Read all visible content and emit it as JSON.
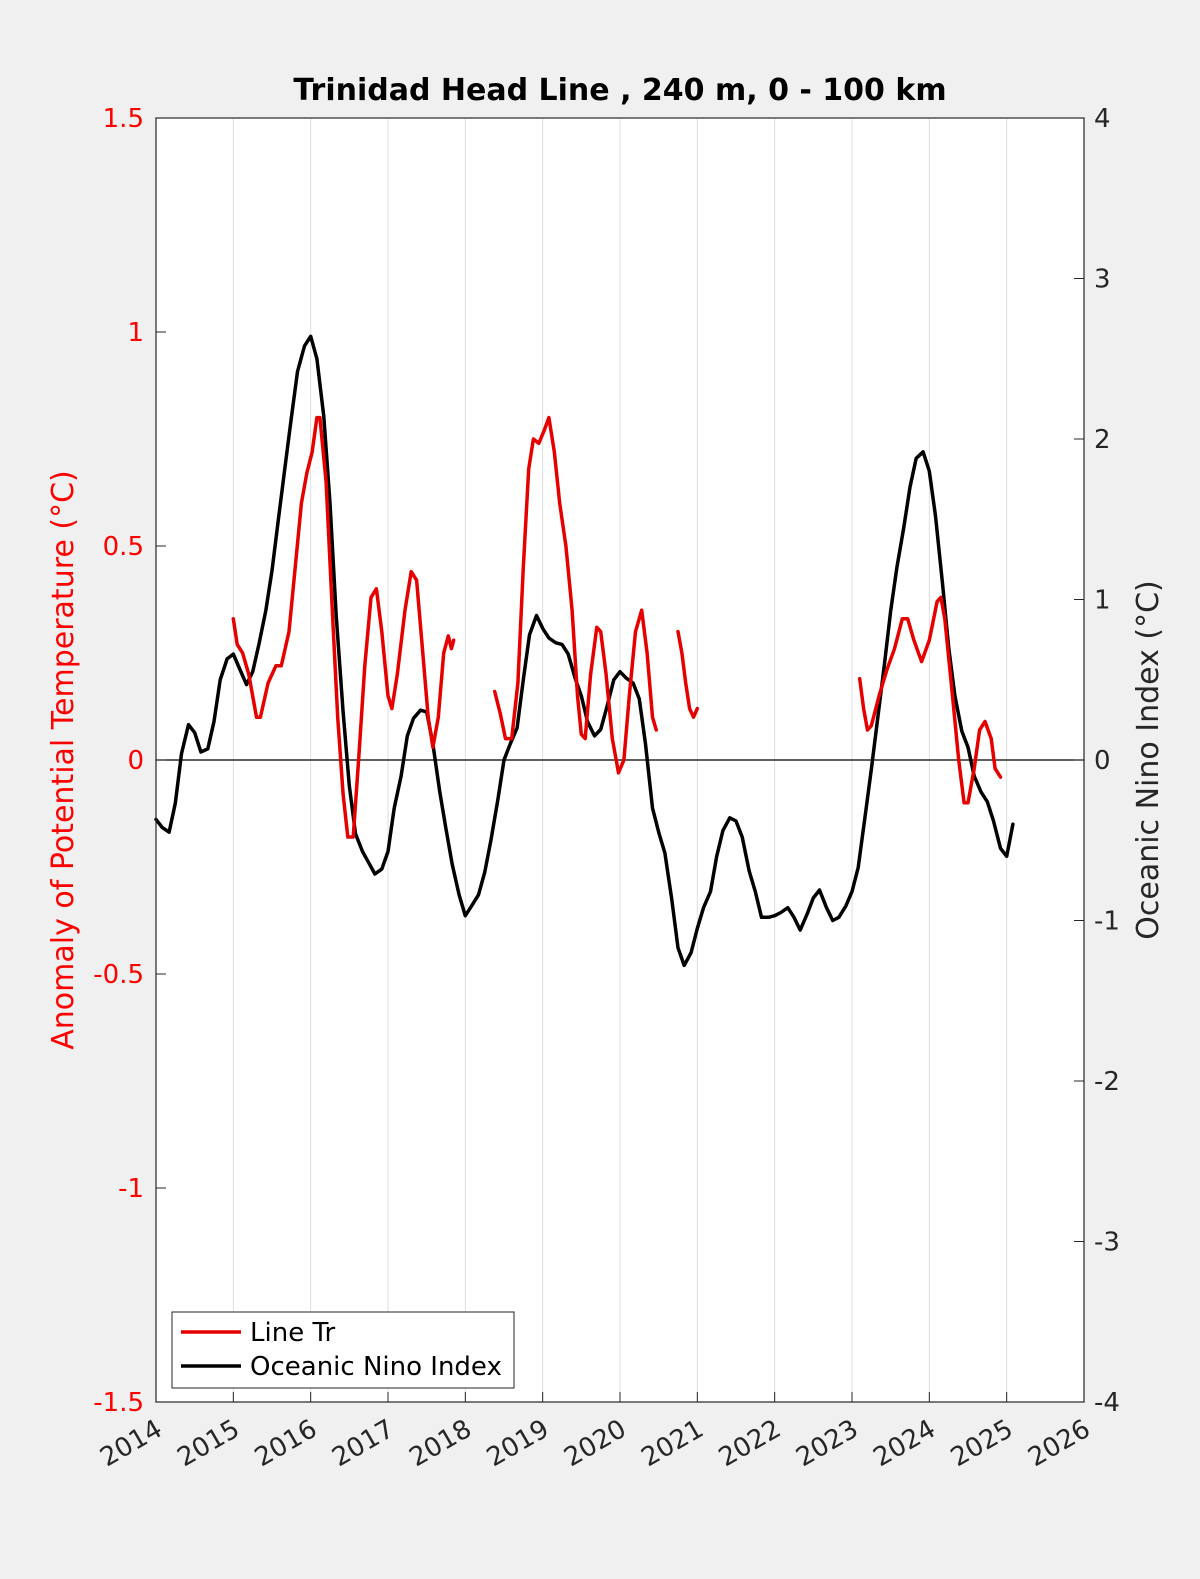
{
  "chart_data": {
    "type": "line",
    "title": "Trinidad Head Line , 240 m, 0 - 100 km",
    "ylabel_left": "Anomaly of Potential Temperature (°C)",
    "ylabel_right": "Oceanic Nino Index (°C)",
    "xlim": [
      2014,
      2026
    ],
    "ylim_left": [
      -1.5,
      1.5
    ],
    "ylim_right": [
      -4,
      4
    ],
    "x_ticks": [
      "2014",
      "2015",
      "2016",
      "2017",
      "2018",
      "2019",
      "2020",
      "2021",
      "2022",
      "2023",
      "2024",
      "2025",
      "2026"
    ],
    "y_ticks_left": [
      "1.5",
      "1",
      "0.5",
      "0",
      "-0.5",
      "-1",
      "-1.5"
    ],
    "y_ticks_right": [
      "4",
      "3",
      "2",
      "1",
      "0",
      "-1",
      "-2",
      "-3",
      "-4"
    ],
    "grid": "vertical",
    "legend_position": "bottom-left",
    "zero_line": true,
    "colors": {
      "line_tr": "#e60000",
      "oni": "#000000",
      "axis_left": "#ff0000",
      "axis_right": "#262626"
    },
    "series": [
      {
        "name": "Line Tr",
        "axis": "left",
        "color": "#e60000",
        "segments": [
          [
            [
              2015.0,
              0.33
            ],
            [
              2015.05,
              0.27
            ],
            [
              2015.12,
              0.25
            ],
            [
              2015.2,
              0.2
            ],
            [
              2015.3,
              0.1
            ],
            [
              2015.35,
              0.1
            ],
            [
              2015.45,
              0.18
            ],
            [
              2015.55,
              0.22
            ],
            [
              2015.62,
              0.22
            ],
            [
              2015.72,
              0.3
            ],
            [
              2015.8,
              0.45
            ],
            [
              2015.88,
              0.6
            ],
            [
              2015.95,
              0.67
            ],
            [
              2016.02,
              0.72
            ],
            [
              2016.08,
              0.8
            ],
            [
              2016.12,
              0.8
            ],
            [
              2016.2,
              0.65
            ],
            [
              2016.28,
              0.35
            ],
            [
              2016.35,
              0.1
            ],
            [
              2016.42,
              -0.08
            ],
            [
              2016.48,
              -0.18
            ],
            [
              2016.55,
              -0.18
            ],
            [
              2016.62,
              0.0
            ],
            [
              2016.7,
              0.22
            ],
            [
              2016.78,
              0.38
            ],
            [
              2016.85,
              0.4
            ],
            [
              2016.92,
              0.3
            ],
            [
              2017.0,
              0.15
            ],
            [
              2017.05,
              0.12
            ],
            [
              2017.12,
              0.2
            ],
            [
              2017.22,
              0.35
            ],
            [
              2017.3,
              0.44
            ],
            [
              2017.37,
              0.42
            ],
            [
              2017.45,
              0.25
            ],
            [
              2017.52,
              0.1
            ],
            [
              2017.58,
              0.03
            ],
            [
              2017.65,
              0.1
            ],
            [
              2017.72,
              0.25
            ],
            [
              2017.78,
              0.29
            ],
            [
              2017.82,
              0.26
            ],
            [
              2017.85,
              0.28
            ]
          ],
          [
            [
              2018.38,
              0.16
            ],
            [
              2018.45,
              0.11
            ],
            [
              2018.52,
              0.05
            ],
            [
              2018.6,
              0.05
            ],
            [
              2018.68,
              0.18
            ],
            [
              2018.75,
              0.45
            ],
            [
              2018.82,
              0.68
            ],
            [
              2018.88,
              0.75
            ],
            [
              2018.95,
              0.74
            ],
            [
              2019.02,
              0.77
            ],
            [
              2019.08,
              0.8
            ],
            [
              2019.15,
              0.72
            ],
            [
              2019.22,
              0.6
            ],
            [
              2019.3,
              0.5
            ],
            [
              2019.38,
              0.35
            ],
            [
              2019.45,
              0.15
            ],
            [
              2019.5,
              0.06
            ],
            [
              2019.55,
              0.05
            ],
            [
              2019.62,
              0.2
            ],
            [
              2019.7,
              0.31
            ],
            [
              2019.75,
              0.3
            ],
            [
              2019.82,
              0.2
            ],
            [
              2019.9,
              0.05
            ],
            [
              2019.98,
              -0.03
            ],
            [
              2020.05,
              0.0
            ],
            [
              2020.12,
              0.15
            ],
            [
              2020.2,
              0.3
            ],
            [
              2020.28,
              0.35
            ],
            [
              2020.35,
              0.25
            ],
            [
              2020.42,
              0.1
            ],
            [
              2020.47,
              0.07
            ]
          ],
          [
            [
              2020.75,
              0.3
            ],
            [
              2020.8,
              0.25
            ],
            [
              2020.85,
              0.18
            ],
            [
              2020.9,
              0.12
            ],
            [
              2020.95,
              0.1
            ],
            [
              2021.0,
              0.12
            ]
          ],
          [
            [
              2023.1,
              0.19
            ],
            [
              2023.15,
              0.12
            ],
            [
              2023.2,
              0.07
            ],
            [
              2023.25,
              0.08
            ],
            [
              2023.35,
              0.15
            ],
            [
              2023.45,
              0.21
            ],
            [
              2023.55,
              0.26
            ],
            [
              2023.65,
              0.33
            ],
            [
              2023.72,
              0.33
            ],
            [
              2023.8,
              0.28
            ],
            [
              2023.9,
              0.23
            ],
            [
              2024.0,
              0.28
            ],
            [
              2024.1,
              0.37
            ],
            [
              2024.15,
              0.38
            ],
            [
              2024.2,
              0.33
            ],
            [
              2024.3,
              0.15
            ],
            [
              2024.38,
              0.0
            ],
            [
              2024.45,
              -0.1
            ],
            [
              2024.5,
              -0.1
            ],
            [
              2024.58,
              -0.02
            ],
            [
              2024.65,
              0.07
            ],
            [
              2024.72,
              0.09
            ],
            [
              2024.8,
              0.05
            ],
            [
              2024.85,
              -0.02
            ],
            [
              2024.92,
              -0.04
            ]
          ]
        ]
      },
      {
        "name": "Oceanic Nino Index",
        "axis": "right",
        "color": "#000000",
        "segments": [
          [
            [
              2014.0,
              -0.37
            ],
            [
              2014.08,
              -0.42
            ],
            [
              2014.17,
              -0.45
            ],
            [
              2014.25,
              -0.27
            ],
            [
              2014.33,
              0.04
            ],
            [
              2014.42,
              0.22
            ],
            [
              2014.5,
              0.17
            ],
            [
              2014.58,
              0.05
            ],
            [
              2014.67,
              0.07
            ],
            [
              2014.75,
              0.24
            ],
            [
              2014.83,
              0.5
            ],
            [
              2014.92,
              0.63
            ],
            [
              2015.0,
              0.66
            ],
            [
              2015.08,
              0.57
            ],
            [
              2015.17,
              0.47
            ],
            [
              2015.25,
              0.55
            ],
            [
              2015.33,
              0.72
            ],
            [
              2015.42,
              0.93
            ],
            [
              2015.5,
              1.18
            ],
            [
              2015.58,
              1.49
            ],
            [
              2015.67,
              1.83
            ],
            [
              2015.75,
              2.13
            ],
            [
              2015.83,
              2.42
            ],
            [
              2015.92,
              2.58
            ],
            [
              2016.0,
              2.64
            ],
            [
              2016.08,
              2.5
            ],
            [
              2016.17,
              2.14
            ],
            [
              2016.25,
              1.6
            ],
            [
              2016.33,
              0.9
            ],
            [
              2016.42,
              0.3
            ],
            [
              2016.5,
              -0.16
            ],
            [
              2016.58,
              -0.46
            ],
            [
              2016.67,
              -0.57
            ],
            [
              2016.75,
              -0.64
            ],
            [
              2016.83,
              -0.71
            ],
            [
              2016.92,
              -0.68
            ],
            [
              2017.0,
              -0.57
            ],
            [
              2017.08,
              -0.3
            ],
            [
              2017.17,
              -0.1
            ],
            [
              2017.25,
              0.15
            ],
            [
              2017.33,
              0.26
            ],
            [
              2017.42,
              0.31
            ],
            [
              2017.5,
              0.3
            ],
            [
              2017.58,
              0.1
            ],
            [
              2017.67,
              -0.2
            ],
            [
              2017.75,
              -0.43
            ],
            [
              2017.83,
              -0.65
            ],
            [
              2017.92,
              -0.84
            ],
            [
              2018.0,
              -0.97
            ],
            [
              2018.08,
              -0.91
            ],
            [
              2018.17,
              -0.84
            ],
            [
              2018.25,
              -0.7
            ],
            [
              2018.33,
              -0.5
            ],
            [
              2018.42,
              -0.25
            ],
            [
              2018.5,
              0.0
            ],
            [
              2018.58,
              0.1
            ],
            [
              2018.67,
              0.2
            ],
            [
              2018.75,
              0.5
            ],
            [
              2018.83,
              0.78
            ],
            [
              2018.92,
              0.9
            ],
            [
              2019.0,
              0.82
            ],
            [
              2019.08,
              0.76
            ],
            [
              2019.17,
              0.73
            ],
            [
              2019.25,
              0.72
            ],
            [
              2019.33,
              0.66
            ],
            [
              2019.42,
              0.51
            ],
            [
              2019.5,
              0.4
            ],
            [
              2019.58,
              0.24
            ],
            [
              2019.67,
              0.15
            ],
            [
              2019.75,
              0.19
            ],
            [
              2019.83,
              0.33
            ],
            [
              2019.92,
              0.5
            ],
            [
              2020.0,
              0.55
            ],
            [
              2020.08,
              0.51
            ],
            [
              2020.17,
              0.48
            ],
            [
              2020.25,
              0.38
            ],
            [
              2020.33,
              0.1
            ],
            [
              2020.42,
              -0.3
            ],
            [
              2020.5,
              -0.45
            ],
            [
              2020.58,
              -0.58
            ],
            [
              2020.67,
              -0.87
            ],
            [
              2020.75,
              -1.17
            ],
            [
              2020.83,
              -1.28
            ],
            [
              2020.92,
              -1.2
            ],
            [
              2021.0,
              -1.05
            ],
            [
              2021.08,
              -0.92
            ],
            [
              2021.17,
              -0.82
            ],
            [
              2021.25,
              -0.6
            ],
            [
              2021.33,
              -0.44
            ],
            [
              2021.42,
              -0.36
            ],
            [
              2021.5,
              -0.38
            ],
            [
              2021.58,
              -0.48
            ],
            [
              2021.67,
              -0.69
            ],
            [
              2021.75,
              -0.82
            ],
            [
              2021.83,
              -0.98
            ],
            [
              2021.92,
              -0.98
            ],
            [
              2022.0,
              -0.97
            ],
            [
              2022.08,
              -0.95
            ],
            [
              2022.17,
              -0.92
            ],
            [
              2022.25,
              -0.98
            ],
            [
              2022.33,
              -1.06
            ],
            [
              2022.42,
              -0.96
            ],
            [
              2022.5,
              -0.86
            ],
            [
              2022.58,
              -0.81
            ],
            [
              2022.67,
              -0.92
            ],
            [
              2022.75,
              -1.0
            ],
            [
              2022.83,
              -0.98
            ],
            [
              2022.92,
              -0.91
            ],
            [
              2023.0,
              -0.82
            ],
            [
              2023.08,
              -0.67
            ],
            [
              2023.17,
              -0.35
            ],
            [
              2023.25,
              -0.06
            ],
            [
              2023.33,
              0.25
            ],
            [
              2023.42,
              0.6
            ],
            [
              2023.5,
              0.93
            ],
            [
              2023.58,
              1.2
            ],
            [
              2023.67,
              1.45
            ],
            [
              2023.75,
              1.7
            ],
            [
              2023.83,
              1.88
            ],
            [
              2023.92,
              1.92
            ],
            [
              2024.0,
              1.8
            ],
            [
              2024.08,
              1.52
            ],
            [
              2024.17,
              1.1
            ],
            [
              2024.25,
              0.7
            ],
            [
              2024.33,
              0.4
            ],
            [
              2024.42,
              0.18
            ],
            [
              2024.5,
              0.08
            ],
            [
              2024.58,
              -0.1
            ],
            [
              2024.67,
              -0.2
            ],
            [
              2024.75,
              -0.26
            ],
            [
              2024.83,
              -0.38
            ],
            [
              2024.92,
              -0.55
            ],
            [
              2025.0,
              -0.6
            ],
            [
              2025.08,
              -0.4
            ]
          ]
        ]
      }
    ]
  }
}
